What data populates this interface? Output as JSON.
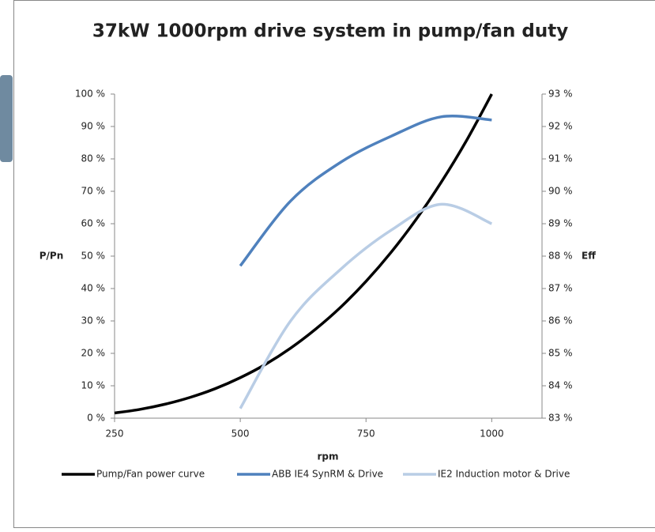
{
  "chart_data": {
    "type": "line",
    "title": "37kW 1000rpm drive system in pump/fan duty",
    "x_label": "rpm",
    "y_label": "P/Pn",
    "y2_label": "Eff",
    "xlim": [
      250,
      1100
    ],
    "xticks": [
      250,
      500,
      750,
      1000
    ],
    "ylim": [
      0,
      100
    ],
    "yticks": [
      {
        "value": 0,
        "label": "0 %"
      },
      {
        "value": 10,
        "label": "10 %"
      },
      {
        "value": 20,
        "label": "20 %"
      },
      {
        "value": 30,
        "label": "30 %"
      },
      {
        "value": 40,
        "label": "40 %"
      },
      {
        "value": 50,
        "label": "50 %"
      },
      {
        "value": 60,
        "label": "60 %"
      },
      {
        "value": 70,
        "label": "70 %"
      },
      {
        "value": 80,
        "label": "80 %"
      },
      {
        "value": 90,
        "label": "90 %"
      },
      {
        "value": 100,
        "label": "100 %"
      }
    ],
    "y2lim": [
      83,
      93
    ],
    "y2ticks": [
      {
        "value": 83,
        "label": "83 %"
      },
      {
        "value": 84,
        "label": "84 %"
      },
      {
        "value": 85,
        "label": "85 %"
      },
      {
        "value": 86,
        "label": "86 %"
      },
      {
        "value": 87,
        "label": "87 %"
      },
      {
        "value": 88,
        "label": "88 %"
      },
      {
        "value": 89,
        "label": "89 %"
      },
      {
        "value": 90,
        "label": "90 %"
      },
      {
        "value": 91,
        "label": "91 %"
      },
      {
        "value": 92,
        "label": "92 %"
      },
      {
        "value": 93,
        "label": "93 %"
      }
    ],
    "grid": false,
    "legend": "bottom",
    "series": [
      {
        "name": "Pump/Fan power curve",
        "color": "#000000",
        "x": [
          250,
          300,
          350,
          400,
          450,
          500,
          550,
          600,
          650,
          700,
          750,
          800,
          850,
          900,
          950,
          1000
        ],
        "values": [
          1.6,
          2.7,
          4.3,
          6.4,
          9.1,
          12.5,
          16.6,
          21.6,
          27.5,
          34.3,
          42.2,
          51.2,
          61.4,
          72.9,
          85.7,
          100
        ]
      },
      {
        "name": "ABB IE4 SynRM & Drive",
        "color": "#4f81bd",
        "axis": "y2",
        "x": [
          500,
          600,
          700,
          800,
          900,
          1000
        ],
        "values": [
          87.7,
          89.7,
          90.9,
          91.7,
          92.3,
          92.2
        ]
      },
      {
        "name": "IE2 Induction motor & Drive",
        "color": "#b9cde5",
        "axis": "y2",
        "x": [
          500,
          600,
          700,
          800,
          900,
          1000
        ],
        "values": [
          83.3,
          86.0,
          87.6,
          88.8,
          89.6,
          89.0
        ]
      }
    ]
  }
}
